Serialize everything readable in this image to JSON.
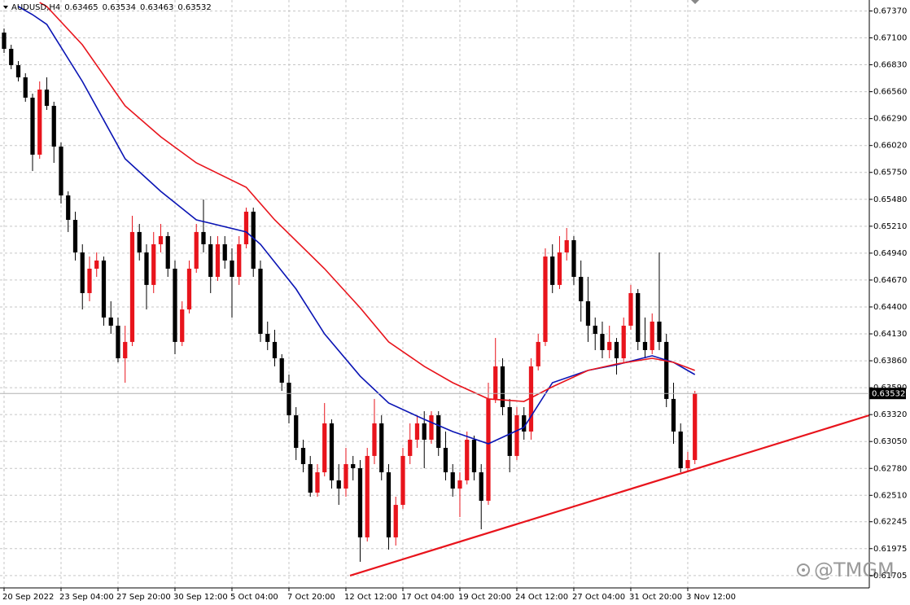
{
  "chart_data": {
    "type": "candlestick",
    "header": {
      "symbol": "AUDUSD,H4",
      "ohlc": [
        0.63465,
        0.63534,
        0.63463,
        0.63532
      ]
    },
    "watermark": "@TMGM",
    "up_color": "#e8141c",
    "down_color": "#000000",
    "grid": true,
    "xlim": [
      -0.57,
      121.49
    ],
    "xticks": [
      {
        "value": 0,
        "label": "20 Sep 2022"
      },
      {
        "value": 8,
        "label": "23 Sep 04:00"
      },
      {
        "value": 16,
        "label": "27 Sep 20:00"
      },
      {
        "value": 24,
        "label": "30 Sep 12:00"
      },
      {
        "value": 32,
        "label": "5 Oct 04:00"
      },
      {
        "value": 40,
        "label": "7 Oct 20:00"
      },
      {
        "value": 48,
        "label": "12 Oct 12:00"
      },
      {
        "value": 56,
        "label": "17 Oct 04:00"
      },
      {
        "value": 64,
        "label": "19 Oct 20:00"
      },
      {
        "value": 72,
        "label": "24 Oct 12:00"
      },
      {
        "value": 80,
        "label": "27 Oct 04:00"
      },
      {
        "value": 88,
        "label": "31 Oct 20:00"
      },
      {
        "value": 96,
        "label": "3 Nov 12:00"
      }
    ],
    "ylim": [
      0.61581,
      0.6748
    ],
    "yticks": [
      {
        "value": 0.6737,
        "label": "0.67370"
      },
      {
        "value": 0.671,
        "label": "0.67100"
      },
      {
        "value": 0.6683,
        "label": "0.66830"
      },
      {
        "value": 0.6656,
        "label": "0.66560"
      },
      {
        "value": 0.6629,
        "label": "0.66290"
      },
      {
        "value": 0.6602,
        "label": "0.66020"
      },
      {
        "value": 0.6575,
        "label": "0.65750"
      },
      {
        "value": 0.6548,
        "label": "0.65480"
      },
      {
        "value": 0.6521,
        "label": "0.65210"
      },
      {
        "value": 0.6494,
        "label": "0.64940"
      },
      {
        "value": 0.6467,
        "label": "0.64670"
      },
      {
        "value": 0.644,
        "label": "0.64400"
      },
      {
        "value": 0.6413,
        "label": "0.64130"
      },
      {
        "value": 0.6386,
        "label": "0.63860"
      },
      {
        "value": 0.6359,
        "label": "0.63590"
      },
      {
        "value": 0.6332,
        "label": "0.63320"
      },
      {
        "value": 0.6305,
        "label": "0.63050"
      },
      {
        "value": 0.6278,
        "label": "0.62780"
      },
      {
        "value": 0.6251,
        "label": "0.62510"
      },
      0.62245,
      0.61975,
      0.61705
    ],
    "last_price": 0.63532,
    "candles": [
      [
        0.67153,
        0.67194,
        0.66949,
        0.6699
      ],
      [
        0.6699,
        0.67031,
        0.66786,
        0.66826
      ],
      [
        0.66826,
        0.66867,
        0.66663,
        0.66704
      ],
      [
        0.66704,
        0.66745,
        0.66459,
        0.665
      ],
      [
        0.665,
        0.6654,
        0.65764,
        0.65928
      ],
      [
        0.65928,
        0.66663,
        0.65887,
        0.66581
      ],
      [
        0.66581,
        0.66704,
        0.66377,
        0.66418
      ],
      [
        0.66418,
        0.66459,
        0.65846,
        0.66009
      ],
      [
        0.66009,
        0.6605,
        0.65438,
        0.65519
      ],
      [
        0.65519,
        0.6556,
        0.65152,
        0.65274
      ],
      [
        0.65274,
        0.65356,
        0.64866,
        0.64947
      ],
      [
        0.64947,
        0.65029,
        0.64375,
        0.64539
      ],
      [
        0.64539,
        0.64906,
        0.64457,
        0.64784
      ],
      [
        0.64784,
        0.64947,
        0.64702,
        0.64866
      ],
      [
        0.64866,
        0.64906,
        0.64212,
        0.64294
      ],
      [
        0.64294,
        0.64457,
        0.6413,
        0.64212
      ],
      [
        0.64212,
        0.64294,
        0.63844,
        0.63885
      ],
      [
        0.63885,
        0.64212,
        0.6364,
        0.64049
      ],
      [
        0.64049,
        0.65315,
        0.64008,
        0.65152
      ],
      [
        0.65152,
        0.65233,
        0.64866,
        0.64947
      ],
      [
        0.64947,
        0.65029,
        0.64375,
        0.64621
      ],
      [
        0.64621,
        0.65152,
        0.64539,
        0.65029
      ],
      [
        0.65029,
        0.65233,
        0.64947,
        0.65111
      ],
      [
        0.65111,
        0.65152,
        0.64702,
        0.64784
      ],
      [
        0.64784,
        0.64866,
        0.63926,
        0.64049
      ],
      [
        0.64049,
        0.64457,
        0.64008,
        0.64375
      ],
      [
        0.64375,
        0.64866,
        0.64335,
        0.64784
      ],
      [
        0.64784,
        0.65233,
        0.64743,
        0.65152
      ],
      [
        0.65152,
        0.65478,
        0.64947,
        0.65029
      ],
      [
        0.65029,
        0.65111,
        0.64539,
        0.64702
      ],
      [
        0.64702,
        0.65111,
        0.64661,
        0.65029
      ],
      [
        0.65029,
        0.65111,
        0.64784,
        0.64866
      ],
      [
        0.64866,
        0.64988,
        0.64294,
        0.64702
      ],
      [
        0.64702,
        0.65111,
        0.64621,
        0.65029
      ],
      [
        0.65029,
        0.65397,
        0.64988,
        0.65356
      ],
      [
        0.65356,
        0.65397,
        0.64702,
        0.64784
      ],
      [
        0.64784,
        0.64866,
        0.64049,
        0.6413
      ],
      [
        0.6413,
        0.64253,
        0.63967,
        0.64049
      ],
      [
        0.64049,
        0.64171,
        0.63804,
        0.63885
      ],
      [
        0.63885,
        0.63926,
        0.63558,
        0.6364
      ],
      [
        0.6364,
        0.63722,
        0.63232,
        0.63313
      ],
      [
        0.63313,
        0.63395,
        0.62864,
        0.62986
      ],
      [
        0.62986,
        0.63068,
        0.62741,
        0.62823
      ],
      [
        0.62823,
        0.62905,
        0.62496,
        0.62537
      ],
      [
        0.62537,
        0.62823,
        0.62496,
        0.62741
      ],
      [
        0.62741,
        0.63436,
        0.627,
        0.63232
      ],
      [
        0.63232,
        0.63272,
        0.62578,
        0.6266
      ],
      [
        0.6266,
        0.62823,
        0.62414,
        0.62578
      ],
      [
        0.62578,
        0.62986,
        0.62496,
        0.62823
      ],
      [
        0.62823,
        0.62905,
        0.6266,
        0.62782
      ],
      [
        0.62782,
        0.62864,
        0.61843,
        0.62088
      ],
      [
        0.62088,
        0.62986,
        0.62047,
        0.62905
      ],
      [
        0.62905,
        0.63477,
        0.62823,
        0.63232
      ],
      [
        0.63232,
        0.63313,
        0.6266,
        0.62741
      ],
      [
        0.62741,
        0.62823,
        0.61965,
        0.62088
      ],
      [
        0.62088,
        0.62496,
        0.62006,
        0.62414
      ],
      [
        0.62414,
        0.62986,
        0.62374,
        0.62905
      ],
      [
        0.62905,
        0.63232,
        0.62823,
        0.63068
      ],
      [
        0.63068,
        0.63313,
        0.62986,
        0.63232
      ],
      [
        0.63232,
        0.63354,
        0.62782,
        0.63068
      ],
      [
        0.63068,
        0.63354,
        0.63027,
        0.63313
      ],
      [
        0.63313,
        0.63354,
        0.62905,
        0.62986
      ],
      [
        0.62986,
        0.6315,
        0.6266,
        0.62741
      ],
      [
        0.62741,
        0.62823,
        0.62496,
        0.62578
      ],
      [
        0.62578,
        0.62741,
        0.62292,
        0.6266
      ],
      [
        0.6266,
        0.6315,
        0.62619,
        0.63068
      ],
      [
        0.63068,
        0.63109,
        0.6266,
        0.62741
      ],
      [
        0.62741,
        0.62823,
        0.62169,
        0.62455
      ],
      [
        0.62455,
        0.6364,
        0.62414,
        0.63477
      ],
      [
        0.63477,
        0.64089,
        0.63436,
        0.63804
      ],
      [
        0.63804,
        0.63885,
        0.63313,
        0.63395
      ],
      [
        0.63395,
        0.63477,
        0.62741,
        0.62905
      ],
      [
        0.62905,
        0.63395,
        0.62864,
        0.63313
      ],
      [
        0.63313,
        0.63395,
        0.63068,
        0.6315
      ],
      [
        0.6315,
        0.63885,
        0.63068,
        0.63804
      ],
      [
        0.63804,
        0.6413,
        0.63763,
        0.64049
      ],
      [
        0.64049,
        0.64988,
        0.64008,
        0.64906
      ],
      [
        0.64906,
        0.65029,
        0.64539,
        0.64621
      ],
      [
        0.64621,
        0.65111,
        0.6458,
        0.64947
      ],
      [
        0.64947,
        0.65192,
        0.64866,
        0.6507
      ],
      [
        0.6507,
        0.65111,
        0.64621,
        0.64702
      ],
      [
        0.64702,
        0.64866,
        0.64253,
        0.64457
      ],
      [
        0.64457,
        0.64702,
        0.64049,
        0.64212
      ],
      [
        0.64212,
        0.64294,
        0.63967,
        0.6413
      ],
      [
        0.6413,
        0.64253,
        0.63885,
        0.63967
      ],
      [
        0.63967,
        0.64212,
        0.63885,
        0.64049
      ],
      [
        0.64049,
        0.64089,
        0.63722,
        0.63885
      ],
      [
        0.63885,
        0.64294,
        0.63844,
        0.64212
      ],
      [
        0.64212,
        0.64621,
        0.64171,
        0.64539
      ],
      [
        0.64539,
        0.6458,
        0.63967,
        0.64049
      ],
      [
        0.64049,
        0.64294,
        0.63885,
        0.63967
      ],
      [
        0.63967,
        0.64335,
        0.63926,
        0.64253
      ],
      [
        0.64253,
        0.64947,
        0.63967,
        0.64049
      ],
      [
        0.64049,
        0.6413,
        0.63395,
        0.63477
      ],
      [
        0.63477,
        0.6364,
        0.63027,
        0.6315
      ],
      [
        0.6315,
        0.63232,
        0.62741,
        0.62782
      ],
      [
        0.62782,
        0.62946,
        0.62741,
        0.62864
      ],
      [
        0.62864,
        0.63558,
        0.62823,
        0.63532
      ]
    ],
    "lines": [
      {
        "color": "#0a14b4",
        "x": [
          2,
          4,
          6,
          11,
          17,
          22,
          27,
          34,
          36,
          41,
          45,
          50,
          54,
          59,
          63,
          68,
          73,
          77,
          82,
          86,
          91,
          94,
          97
        ],
        "values": [
          0.67415,
          0.67333,
          0.67235,
          0.66663,
          0.65887,
          0.6556,
          0.65274,
          0.65152,
          0.65029,
          0.6458,
          0.6413,
          0.63706,
          0.63436,
          0.63272,
          0.6315,
          0.63027,
          0.63191,
          0.6364,
          0.63763,
          0.6382,
          0.6391,
          0.63844,
          0.63722
        ]
      },
      {
        "color": "#e8141c",
        "x": [
          5,
          6,
          11,
          17,
          22,
          27,
          34,
          38,
          45,
          50,
          54,
          59,
          63,
          68,
          73,
          77,
          82,
          86,
          91,
          94,
          97
        ],
        "values": [
          0.67455,
          0.67415,
          0.67031,
          0.66418,
          0.66107,
          0.65846,
          0.65601,
          0.65274,
          0.64784,
          0.64392,
          0.64049,
          0.63804,
          0.6364,
          0.63477,
          0.63452,
          0.63599,
          0.63763,
          0.63828,
          0.63885,
          0.63844,
          0.63763
        ]
      }
    ],
    "trendline": {
      "color": "#e8141c",
      "x": [
        48.57,
        121.49
      ],
      "values": [
        0.61704,
        0.63313
      ]
    }
  }
}
